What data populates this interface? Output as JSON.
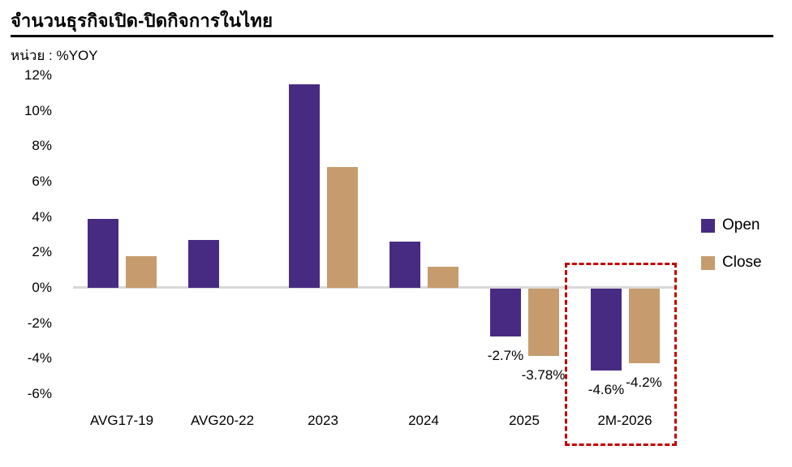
{
  "title": "จำนวนธุรกิจเปิด-ปิดกิจการในไทย",
  "unit_label": "หน่วย : %YOY",
  "colors": {
    "open": "#472B82",
    "close": "#C69C6E",
    "highlight": "#C00000",
    "axis_line": "#D9D9D9",
    "text": "#000000"
  },
  "legend": {
    "items": [
      {
        "label": "Open",
        "series_index": 0
      },
      {
        "label": "Close",
        "series_index": 1
      }
    ]
  },
  "chart_data": {
    "type": "bar",
    "title": "จำนวนธุรกิจเปิด-ปิดกิจการในไทย",
    "unit": "%YOY",
    "categories": [
      "AVG17-19",
      "AVG20-22",
      "2023",
      "2024",
      "2025",
      "2M-2026"
    ],
    "series": [
      {
        "name": "Open",
        "color": "#472B82",
        "values": [
          3.9,
          2.7,
          11.5,
          2.6,
          -2.7,
          -4.6
        ]
      },
      {
        "name": "Close",
        "color": "#C69C6E",
        "values": [
          1.8,
          0,
          6.8,
          1.2,
          -3.78,
          -4.2
        ]
      }
    ],
    "data_labels": [
      {
        "category_index": 4,
        "series_index": 0,
        "text": "-2.7%"
      },
      {
        "category_index": 4,
        "series_index": 1,
        "text": "-3.78%"
      },
      {
        "category_index": 5,
        "series_index": 0,
        "text": "-4.6%"
      },
      {
        "category_index": 5,
        "series_index": 1,
        "text": "-4.2%"
      }
    ],
    "yticks": [
      12,
      10,
      8,
      6,
      4,
      2,
      0,
      -2,
      -4,
      -6
    ],
    "ytick_suffix": "%",
    "ylim": [
      -6,
      12
    ],
    "grid": false,
    "legend_position": "right",
    "highlight": {
      "category_index": 5,
      "style": "dashed-box",
      "color": "#C00000"
    }
  }
}
